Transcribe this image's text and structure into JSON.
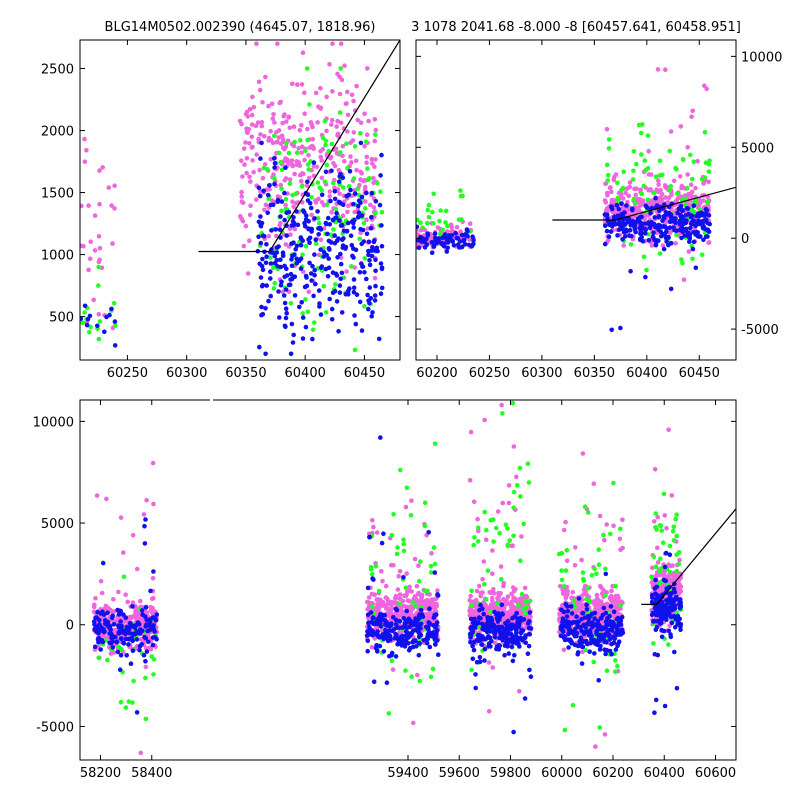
{
  "colors": {
    "pink": "#ee66dd",
    "green": "#22ff22",
    "blue": "#1111ee",
    "model": "#000000",
    "axes": "#000000",
    "background": "#ffffff"
  },
  "chart_data": [
    {
      "id": "top_left",
      "type": "scatter",
      "title": "BLG14M0502.002390 (4645.07, 1818.96)",
      "xlim": [
        60210,
        60480
      ],
      "ylim": [
        150,
        2730
      ],
      "xticks": [
        60250,
        60300,
        60350,
        60400,
        60450
      ],
      "yticks": [
        500,
        1000,
        1500,
        2000,
        2500
      ],
      "ytick_side": "left",
      "series": [
        {
          "color": "pink",
          "clusters": [
            {
              "x": [
                60210,
                60240
              ],
              "y": [
                200,
                2400
              ],
              "n": 30
            },
            {
              "x": [
                60345,
                60460
              ],
              "y": [
                700,
                2700
              ],
              "n": 380
            }
          ]
        },
        {
          "color": "green",
          "clusters": [
            {
              "x": [
                60210,
                60240
              ],
              "y": [
                150,
                900
              ],
              "n": 14
            },
            {
              "x": [
                60360,
                60465
              ],
              "y": [
                200,
                2500
              ],
              "n": 140
            }
          ]
        },
        {
          "color": "blue",
          "clusters": [
            {
              "x": [
                60210,
                60240
              ],
              "y": [
                150,
                700
              ],
              "n": 12
            },
            {
              "x": [
                60360,
                60465
              ],
              "y": [
                200,
                1900
              ],
              "n": 340
            }
          ]
        }
      ],
      "model_line": {
        "x": [
          60310,
          60370,
          60480
        ],
        "y": [
          1025,
          1025,
          2730
        ]
      }
    },
    {
      "id": "top_right",
      "type": "scatter",
      "title": "3 1078 2041.68 -8.000 -8 [60457.641, 60458.951]",
      "xlim": [
        60180,
        60485
      ],
      "ylim": [
        -6700,
        10900
      ],
      "xticks": [
        60200,
        60250,
        60300,
        60350,
        60400,
        60450
      ],
      "yticks": [
        -5000,
        0,
        5000,
        10000
      ],
      "ytick_side": "right",
      "series": [
        {
          "color": "pink",
          "clusters": [
            {
              "x": [
                60180,
                60235
              ],
              "y": [
                -800,
                900
              ],
              "n": 90
            },
            {
              "x": [
                60360,
                60460
              ],
              "y": [
                -400,
                3500
              ],
              "n": 420
            },
            {
              "x": [
                60360,
                60460
              ],
              "y": [
                -3000,
                10000
              ],
              "n": 25
            }
          ]
        },
        {
          "color": "green",
          "clusters": [
            {
              "x": [
                60180,
                60235
              ],
              "y": [
                -700,
                2800
              ],
              "n": 25
            },
            {
              "x": [
                60360,
                60460
              ],
              "y": [
                -1800,
                7500
              ],
              "n": 90
            }
          ]
        },
        {
          "color": "blue",
          "clusters": [
            {
              "x": [
                60180,
                60235
              ],
              "y": [
                -800,
                700
              ],
              "n": 70
            },
            {
              "x": [
                60360,
                60460
              ],
              "y": [
                -600,
                2200
              ],
              "n": 260
            },
            {
              "x": [
                60360,
                60460
              ],
              "y": [
                -6000,
                5000
              ],
              "n": 10
            }
          ]
        }
      ],
      "model_line": {
        "x": [
          60310,
          60370,
          60485
        ],
        "y": [
          1000,
          1000,
          2800
        ]
      }
    },
    {
      "id": "bottom",
      "type": "scatter",
      "title": "",
      "xlim": [
        58120,
        60680
      ],
      "ylim": [
        -6650,
        11050
      ],
      "xticks": [
        58200,
        58400,
        59400,
        59600,
        59800,
        60000,
        60200,
        60400,
        60600
      ],
      "yticks": [
        -5000,
        0,
        5000,
        10000
      ],
      "ytick_side": "left",
      "series": [
        {
          "color": "pink",
          "clusters": [
            {
              "x": [
                58175,
                58420
              ],
              "y": [
                -1200,
                1300
              ],
              "n": 320
            },
            {
              "x": [
                58175,
                58420
              ],
              "y": [
                -6300,
                8000
              ],
              "n": 35
            },
            {
              "x": [
                59240,
                59520
              ],
              "y": [
                -900,
                1900
              ],
              "n": 380
            },
            {
              "x": [
                59240,
                59520
              ],
              "y": [
                -6200,
                8800
              ],
              "n": 35
            },
            {
              "x": [
                59640,
                59880
              ],
              "y": [
                -900,
                1900
              ],
              "n": 380
            },
            {
              "x": [
                59640,
                59880
              ],
              "y": [
                -6200,
                10800
              ],
              "n": 40
            },
            {
              "x": [
                59990,
                60240
              ],
              "y": [
                -900,
                1900
              ],
              "n": 380
            },
            {
              "x": [
                59990,
                60240
              ],
              "y": [
                -6200,
                10700
              ],
              "n": 40
            },
            {
              "x": [
                60350,
                60465
              ],
              "y": [
                -300,
                3500
              ],
              "n": 200
            },
            {
              "x": [
                60350,
                60465
              ],
              "y": [
                -3000,
                10100
              ],
              "n": 20
            }
          ]
        },
        {
          "color": "green",
          "clusters": [
            {
              "x": [
                58175,
                58420
              ],
              "y": [
                -6300,
                3000
              ],
              "n": 30
            },
            {
              "x": [
                59240,
                59520
              ],
              "y": [
                -5000,
                8900
              ],
              "n": 55
            },
            {
              "x": [
                59640,
                59880
              ],
              "y": [
                -4400,
                10900
              ],
              "n": 55
            },
            {
              "x": [
                59990,
                60240
              ],
              "y": [
                -5600,
                7900
              ],
              "n": 55
            },
            {
              "x": [
                60350,
                60465
              ],
              "y": [
                -1800,
                7500
              ],
              "n": 40
            }
          ]
        },
        {
          "color": "blue",
          "clusters": [
            {
              "x": [
                58175,
                58420
              ],
              "y": [
                -1500,
                900
              ],
              "n": 150
            },
            {
              "x": [
                58175,
                58420
              ],
              "y": [
                -6300,
                8200
              ],
              "n": 15
            },
            {
              "x": [
                59240,
                59520
              ],
              "y": [
                -1500,
                900
              ],
              "n": 200
            },
            {
              "x": [
                59240,
                59520
              ],
              "y": [
                -6200,
                9200
              ],
              "n": 25
            },
            {
              "x": [
                59640,
                59880
              ],
              "y": [
                -1500,
                900
              ],
              "n": 200
            },
            {
              "x": [
                59640,
                59880
              ],
              "y": [
                -6300,
                3000
              ],
              "n": 25
            },
            {
              "x": [
                59990,
                60240
              ],
              "y": [
                -1500,
                900
              ],
              "n": 200
            },
            {
              "x": [
                59990,
                60240
              ],
              "y": [
                -3500,
                2500
              ],
              "n": 20
            },
            {
              "x": [
                60350,
                60465
              ],
              "y": [
                -600,
                2200
              ],
              "n": 140
            },
            {
              "x": [
                60350,
                60465
              ],
              "y": [
                -6600,
                5000
              ],
              "n": 10
            }
          ]
        }
      ],
      "model_line": {
        "x": [
          60310,
          60370,
          60680
        ],
        "y": [
          1000,
          1000,
          5700
        ]
      }
    }
  ]
}
